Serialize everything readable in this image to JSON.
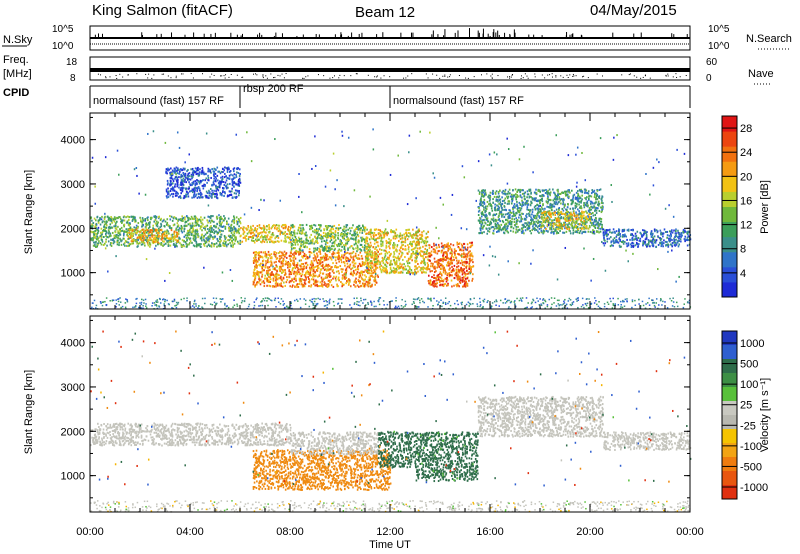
{
  "header": {
    "title": "King Salmon (fitACF)",
    "beam": "Beam 12",
    "date": "04/May/2015"
  },
  "strips": {
    "nsky_label": "N.Sky",
    "nsearch_label": "N.Search",
    "noise_ticks_top": "10^5",
    "noise_ticks_bottom": "10^0",
    "freq_label_1": "Freq.",
    "freq_label_2": "[MHz]",
    "freq_ticks": [
      "18",
      "8"
    ],
    "nave_label": "Nave",
    "nave_ticks": [
      "60",
      "0"
    ],
    "cpid_label": "CPID",
    "cpid_segments": [
      {
        "label": "normalsound (fast) 157 RF",
        "start_hour": 0,
        "end_hour": 6
      },
      {
        "label": "rbsp 200 RF",
        "start_hour": 6,
        "end_hour": 12
      },
      {
        "label": "normalsound (fast) 157 RF",
        "start_hour": 12,
        "end_hour": 24
      }
    ]
  },
  "chart_data": [
    {
      "type": "heatmap",
      "title": "",
      "xlabel": "Time UT",
      "ylabel": "Slant Range [km]",
      "xlim": [
        0,
        24
      ],
      "ylim": [
        180,
        4600
      ],
      "xticks": [
        "00:00",
        "04:00",
        "08:00",
        "12:00",
        "16:00",
        "20:00",
        "00:00"
      ],
      "yticks": [
        1000,
        2000,
        3000,
        4000
      ],
      "colorbar": {
        "label": "Power [dB]",
        "ticks": [
          4,
          8,
          12,
          16,
          20,
          24,
          28
        ],
        "range": [
          0,
          30
        ]
      },
      "regions": [
        {
          "t_start": 0.0,
          "t_end": 6.0,
          "r_low": 1600,
          "r_high": 2300,
          "value": 12
        },
        {
          "t_start": 1.5,
          "t_end": 3.5,
          "r_low": 1700,
          "r_high": 2000,
          "value": 20
        },
        {
          "t_start": 3.0,
          "t_end": 6.0,
          "r_low": 2700,
          "r_high": 3400,
          "value": 4
        },
        {
          "t_start": 6.0,
          "t_end": 8.0,
          "r_low": 1700,
          "r_high": 2100,
          "value": 18
        },
        {
          "t_start": 6.5,
          "t_end": 11.5,
          "r_low": 700,
          "r_high": 1500,
          "value": 22
        },
        {
          "t_start": 8.0,
          "t_end": 11.0,
          "r_low": 1500,
          "r_high": 2100,
          "value": 14
        },
        {
          "t_start": 11.0,
          "t_end": 13.5,
          "r_low": 1000,
          "r_high": 2000,
          "value": 18
        },
        {
          "t_start": 13.5,
          "t_end": 15.3,
          "r_low": 700,
          "r_high": 1700,
          "value": 24
        },
        {
          "t_start": 15.5,
          "t_end": 20.5,
          "r_low": 1900,
          "r_high": 2900,
          "value": 10
        },
        {
          "t_start": 18.0,
          "t_end": 20.0,
          "r_low": 2000,
          "r_high": 2400,
          "value": 18
        },
        {
          "t_start": 20.5,
          "t_end": 24.0,
          "r_low": 1600,
          "r_high": 2000,
          "value": 6
        }
      ]
    },
    {
      "type": "heatmap",
      "title": "",
      "xlabel": "Time UT",
      "ylabel": "Slant Range [km]",
      "xlim": [
        0,
        24
      ],
      "ylim": [
        180,
        4600
      ],
      "xticks": [
        "00:00",
        "04:00",
        "08:00",
        "12:00",
        "16:00",
        "20:00",
        "00:00"
      ],
      "yticks": [
        1000,
        2000,
        3000,
        4000
      ],
      "colorbar": {
        "label": "Velocity [m s⁻¹]",
        "ticks": [
          "1000",
          "500",
          "100",
          "25",
          "-25",
          "-100",
          "-500",
          "-1000"
        ],
        "range": [
          -1000,
          1000
        ]
      },
      "regions": [
        {
          "t_start": 0.0,
          "t_end": 8.0,
          "r_low": 1700,
          "r_high": 2200,
          "value": 0
        },
        {
          "t_start": 6.5,
          "t_end": 12.0,
          "r_low": 700,
          "r_high": 1600,
          "value": -250
        },
        {
          "t_start": 8.0,
          "t_end": 11.5,
          "r_low": 1500,
          "r_high": 2000,
          "value": 0
        },
        {
          "t_start": 11.5,
          "t_end": 13.0,
          "r_low": 1200,
          "r_high": 2000,
          "value": 300
        },
        {
          "t_start": 13.0,
          "t_end": 15.5,
          "r_low": 900,
          "r_high": 2000,
          "value": 150
        },
        {
          "t_start": 15.5,
          "t_end": 20.5,
          "r_low": 1900,
          "r_high": 2800,
          "value": 0
        },
        {
          "t_start": 20.5,
          "t_end": 24.0,
          "r_low": 1600,
          "r_high": 2000,
          "value": 0
        }
      ]
    }
  ]
}
